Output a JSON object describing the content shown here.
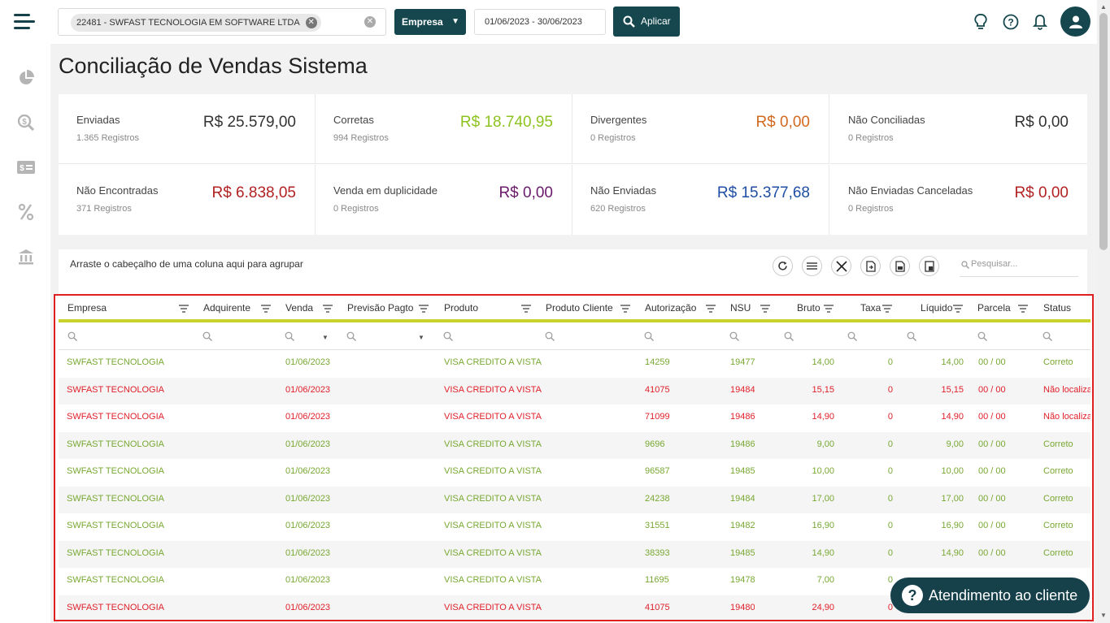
{
  "header": {
    "company_chip": "22481 - SWFAST TECNOLOGIA EM SOFTWARE LTDA",
    "filter_type": "Empresa",
    "date_range": "01/06/2023 - 30/06/2023",
    "apply_label": "Aplicar"
  },
  "page_title": "Conciliação de Vendas Sistema",
  "kpis": [
    {
      "label": "Enviadas",
      "sub": "1.365 Registros",
      "value": "R$ 25.579,00",
      "color": "#333333"
    },
    {
      "label": "Corretas",
      "sub": "994 Registros",
      "value": "R$ 18.740,95",
      "color": "#8dc21f"
    },
    {
      "label": "Divergentes",
      "sub": "0 Registros",
      "value": "R$ 0,00",
      "color": "#d2691e"
    },
    {
      "label": "Não Conciliadas",
      "sub": "0 Registros",
      "value": "R$ 0,00",
      "color": "#333333"
    },
    {
      "label": "Não Encontradas",
      "sub": "371 Registros",
      "value": "R$ 6.838,05",
      "color": "#b22222"
    },
    {
      "label": "Venda em duplicidade",
      "sub": "0 Registros",
      "value": "R$ 0,00",
      "color": "#6b1a6b"
    },
    {
      "label": "Não Enviadas",
      "sub": "620 Registros",
      "value": "R$ 15.377,68",
      "color": "#1f4ea3"
    },
    {
      "label": "Não Enviadas Canceladas",
      "sub": "0 Registros",
      "value": "R$ 0,00",
      "color": "#b22222"
    }
  ],
  "grid": {
    "group_hint": "Arraste o cabeçalho de uma coluna aqui para agrupar",
    "search_placeholder": "Pesquisar...",
    "columns": [
      "Empresa",
      "Adquirente",
      "Venda",
      "Previsão Pagto",
      "Produto",
      "Produto Cliente",
      "Autorização",
      "NSU",
      "Bruto",
      "Taxa",
      "Líquido",
      "Parcela",
      "Status"
    ],
    "rows": [
      {
        "empresa": "SWFAST TECNOLOGIA",
        "venda": "01/06/2023",
        "produto": "VISA CREDITO A VISTA",
        "autorizacao": "14259",
        "nsu": "19477",
        "bruto": "14,00",
        "taxa": "0",
        "liquido": "14,00",
        "parcela": "00 / 00",
        "status": "Correto",
        "ok": true
      },
      {
        "empresa": "SWFAST TECNOLOGIA",
        "venda": "01/06/2023",
        "produto": "VISA CREDITO A VISTA",
        "autorizacao": "41075",
        "nsu": "19484",
        "bruto": "15,15",
        "taxa": "0",
        "liquido": "15,15",
        "parcela": "00 / 00",
        "status": "Não localiza",
        "ok": false
      },
      {
        "empresa": "SWFAST TECNOLOGIA",
        "venda": "01/06/2023",
        "produto": "VISA CREDITO A VISTA",
        "autorizacao": "71099",
        "nsu": "19486",
        "bruto": "14,90",
        "taxa": "0",
        "liquido": "14,90",
        "parcela": "00 / 00",
        "status": "Não localiza",
        "ok": false
      },
      {
        "empresa": "SWFAST TECNOLOGIA",
        "venda": "01/06/2023",
        "produto": "VISA CREDITO A VISTA",
        "autorizacao": "9696",
        "nsu": "19486",
        "bruto": "9,00",
        "taxa": "0",
        "liquido": "9,00",
        "parcela": "00 / 00",
        "status": "Correto",
        "ok": true
      },
      {
        "empresa": "SWFAST TECNOLOGIA",
        "venda": "01/06/2023",
        "produto": "VISA CREDITO A VISTA",
        "autorizacao": "96587",
        "nsu": "19485",
        "bruto": "10,00",
        "taxa": "0",
        "liquido": "10,00",
        "parcela": "00 / 00",
        "status": "Correto",
        "ok": true
      },
      {
        "empresa": "SWFAST TECNOLOGIA",
        "venda": "01/06/2023",
        "produto": "VISA CREDITO A VISTA",
        "autorizacao": "24238",
        "nsu": "19484",
        "bruto": "17,00",
        "taxa": "0",
        "liquido": "17,00",
        "parcela": "00 / 00",
        "status": "Correto",
        "ok": true
      },
      {
        "empresa": "SWFAST TECNOLOGIA",
        "venda": "01/06/2023",
        "produto": "VISA CREDITO A VISTA",
        "autorizacao": "31551",
        "nsu": "19482",
        "bruto": "16,90",
        "taxa": "0",
        "liquido": "16,90",
        "parcela": "00 / 00",
        "status": "Correto",
        "ok": true
      },
      {
        "empresa": "SWFAST TECNOLOGIA",
        "venda": "01/06/2023",
        "produto": "VISA CREDITO A VISTA",
        "autorizacao": "38393",
        "nsu": "19485",
        "bruto": "14,90",
        "taxa": "0",
        "liquido": "14,90",
        "parcela": "00 / 00",
        "status": "Correto",
        "ok": true
      },
      {
        "empresa": "SWFAST TECNOLOGIA",
        "venda": "01/06/2023",
        "produto": "VISA CREDITO A VISTA",
        "autorizacao": "11695",
        "nsu": "19478",
        "bruto": "7,00",
        "taxa": "0",
        "liquido": "",
        "parcela": "",
        "status": "",
        "ok": true
      },
      {
        "empresa": "SWFAST TECNOLOGIA",
        "venda": "01/06/2023",
        "produto": "VISA CREDITO A VISTA",
        "autorizacao": "41075",
        "nsu": "19480",
        "bruto": "24,90",
        "taxa": "0",
        "liquido": "",
        "parcela": "",
        "status": "",
        "ok": false
      }
    ]
  },
  "chat_button": "Atendimento ao cliente",
  "colors": {
    "primary": "#16474f",
    "accent": "#c8d22a",
    "ok": "#78a832",
    "error": "#e0202a",
    "highlight_border": "#e02020"
  }
}
